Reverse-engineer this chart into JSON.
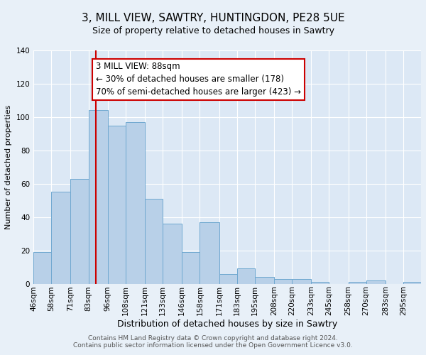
{
  "title": "3, MILL VIEW, SAWTRY, HUNTINGDON, PE28 5UE",
  "subtitle": "Size of property relative to detached houses in Sawtry",
  "xlabel": "Distribution of detached houses by size in Sawtry",
  "ylabel": "Number of detached properties",
  "bar_labels": [
    "46sqm",
    "58sqm",
    "71sqm",
    "83sqm",
    "96sqm",
    "108sqm",
    "121sqm",
    "133sqm",
    "146sqm",
    "158sqm",
    "171sqm",
    "183sqm",
    "195sqm",
    "208sqm",
    "220sqm",
    "233sqm",
    "245sqm",
    "258sqm",
    "270sqm",
    "283sqm",
    "295sqm"
  ],
  "bar_values": [
    19,
    55,
    63,
    104,
    95,
    97,
    51,
    36,
    19,
    37,
    6,
    9,
    4,
    3,
    3,
    1,
    0,
    1,
    2,
    0,
    1
  ],
  "bar_color": "#b8d0e8",
  "bar_edgecolor": "#6fa8d0",
  "ylim": [
    0,
    140
  ],
  "yticks": [
    0,
    20,
    40,
    60,
    80,
    100,
    120,
    140
  ],
  "vline_x": 88,
  "vline_color": "#cc0000",
  "annotation_line1": "3 MILL VIEW: 88sqm",
  "annotation_line2": "← 30% of detached houses are smaller (178)",
  "annotation_line3": "70% of semi-detached houses are larger (423) →",
  "annotation_box_edgecolor": "#cc0000",
  "annotation_box_facecolor": "#ffffff",
  "background_color": "#e8f0f8",
  "plot_background": "#dce8f5",
  "footnote1": "Contains HM Land Registry data © Crown copyright and database right 2024.",
  "footnote2": "Contains public sector information licensed under the Open Government Licence v3.0.",
  "title_fontsize": 11,
  "subtitle_fontsize": 9,
  "xlabel_fontsize": 9,
  "ylabel_fontsize": 8,
  "tick_fontsize": 7.5,
  "annotation_fontsize": 8.5,
  "footnote_fontsize": 6.5,
  "bin_edges": [
    46,
    58,
    71,
    83,
    96,
    108,
    121,
    133,
    146,
    158,
    171,
    183,
    195,
    208,
    220,
    233,
    245,
    258,
    270,
    283,
    295,
    307
  ]
}
